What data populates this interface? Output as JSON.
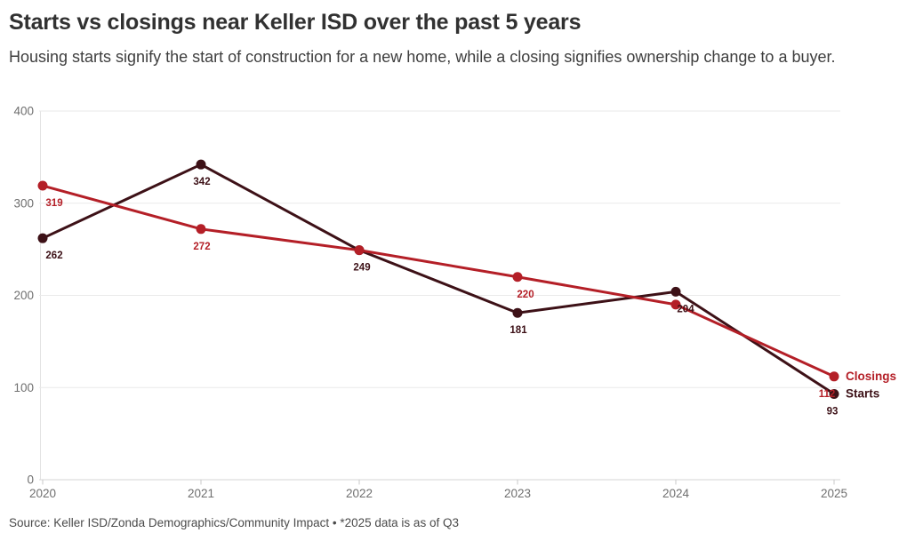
{
  "header": {
    "title": "Starts vs closings near Keller ISD over the past 5 years",
    "subtitle": "Housing starts signify the start of construction for a new home, while a closing signifies ownership change to a buyer."
  },
  "footer": {
    "source": "Source: Keller ISD/Zonda Demographics/Community Impact • *2025 data is as of Q3"
  },
  "colors": {
    "closings": "#b41f27",
    "starts": "#3d1117",
    "grid": "#eaeaea",
    "baseline": "#d4d4d4",
    "axis_line": "#e3e3e3",
    "tick": "#c9c9c9",
    "axis_text": "#6f6f6f"
  },
  "chart_data": {
    "type": "line",
    "title": "Starts vs closings near Keller ISD over the past 5 years",
    "x": [
      "2020",
      "2021",
      "2022",
      "2023",
      "2024",
      "2025"
    ],
    "series": [
      {
        "name": "Closings",
        "color": "#b41f27",
        "values": [
          319,
          272,
          249,
          220,
          190,
          112
        ],
        "point_labels": [
          "319",
          "272",
          "",
          "220",
          "",
          "112"
        ]
      },
      {
        "name": "Starts",
        "color": "#3d1117",
        "values": [
          262,
          342,
          249,
          181,
          204,
          93
        ],
        "point_labels": [
          "262",
          "342",
          "249",
          "181",
          "204",
          "93"
        ]
      }
    ],
    "xlabel": "",
    "ylabel": "",
    "ylim": [
      0,
      400
    ],
    "yticks": [
      0,
      100,
      200,
      300,
      400
    ],
    "grid": true,
    "legend_position": "end-of-lines-right"
  }
}
